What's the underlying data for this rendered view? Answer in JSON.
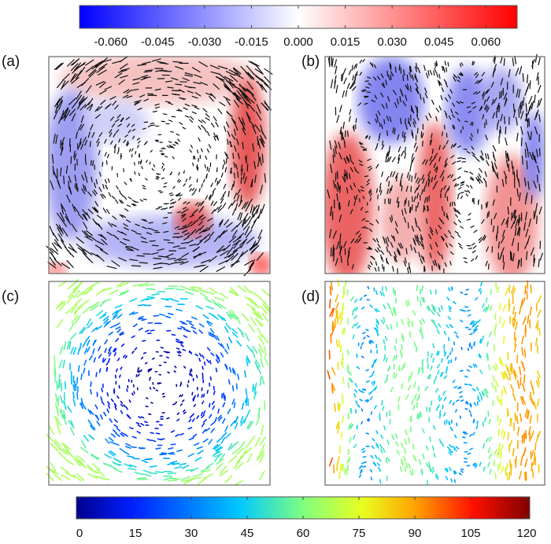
{
  "chart_data": {
    "type": "heatmap",
    "panels": [
      {
        "label": "(a)",
        "kind": "quiver over diverging scalar field",
        "pattern": "single large clockwise vortex",
        "arrow_color": "#000000"
      },
      {
        "label": "(b)",
        "kind": "quiver over diverging scalar field",
        "pattern": "alternating vertical up/down plumes",
        "arrow_color": "#000000"
      },
      {
        "label": "(c)",
        "kind": "quiver colored by magnitude",
        "pattern": "single large vortex, slow core, fast near walls"
      },
      {
        "label": "(d)",
        "kind": "quiver colored by magnitude",
        "pattern": "vertical flow, fastest near side walls"
      }
    ],
    "colorbars": [
      {
        "applies_to": [
          "(a)",
          "(b)"
        ],
        "placement": "top",
        "range": [
          -0.07,
          0.07
        ],
        "ticks": [
          "-0.060",
          "-0.045",
          "-0.030",
          "-0.015",
          "0.000",
          "0.015",
          "0.030",
          "0.045",
          "0.060"
        ],
        "tick_values": [
          -0.06,
          -0.045,
          -0.03,
          -0.015,
          0,
          0.015,
          0.03,
          0.045,
          0.06
        ],
        "colors": [
          "#0000ff",
          "#ffffff",
          "#ff0000"
        ]
      },
      {
        "applies_to": [
          "(c)",
          "(d)"
        ],
        "placement": "bottom",
        "range": [
          0,
          120
        ],
        "ticks": [
          "0",
          "15",
          "30",
          "45",
          "60",
          "75",
          "90",
          "105",
          "120"
        ],
        "tick_values": [
          0,
          15,
          30,
          45,
          60,
          75,
          90,
          105,
          120
        ],
        "colors": [
          "#00008f",
          "#0020ff",
          "#00c8ff",
          "#80ff80",
          "#e8ff20",
          "#ffa000",
          "#ff1000",
          "#800000"
        ]
      }
    ]
  }
}
